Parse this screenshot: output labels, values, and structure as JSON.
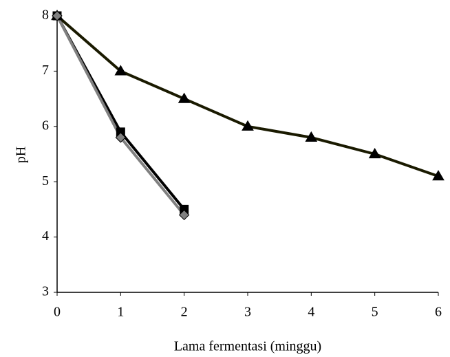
{
  "chart_data": {
    "type": "line",
    "x_label": "Lama fermentasi (minggu)",
    "y_label": "pH",
    "x": [
      0,
      1,
      2,
      3,
      4,
      5,
      6
    ],
    "series": [
      {
        "color": "#1a1a00",
        "marker": "triangle",
        "values": [
          8,
          7,
          6.5,
          6,
          5.8,
          5.5,
          5.1
        ]
      },
      {
        "color": "#000000",
        "marker": "square",
        "values": [
          8,
          5.9,
          4.5,
          null,
          null,
          null,
          null
        ]
      },
      {
        "color": "#808080",
        "marker": "diamond",
        "values": [
          8,
          5.8,
          4.4,
          null,
          null,
          null,
          null
        ]
      }
    ],
    "xlim": [
      0,
      6
    ],
    "xticks": [
      0,
      1,
      2,
      3,
      4,
      5,
      6
    ],
    "ylim": [
      3,
      8
    ],
    "yticks": [
      3,
      4,
      5,
      6,
      7,
      8
    ]
  }
}
